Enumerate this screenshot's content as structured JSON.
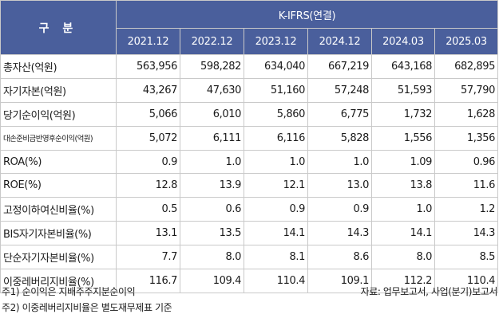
{
  "table": {
    "header_label": "구 분",
    "group_header": "K-IFRS(연결)",
    "columns": [
      "2021.12",
      "2022.12",
      "2023.12",
      "2024.12",
      "2024.03",
      "2025.03"
    ],
    "rows": [
      {
        "label": "총자산(억원)",
        "values": [
          "563,956",
          "598,282",
          "634,040",
          "667,219",
          "643,168",
          "682,895"
        ]
      },
      {
        "label": "자기자본(억원)",
        "values": [
          "43,267",
          "47,630",
          "51,160",
          "57,248",
          "51,593",
          "57,790"
        ]
      },
      {
        "label": "당기순이익(억원)",
        "values": [
          "5,066",
          "6,010",
          "5,860",
          "6,775",
          "1,732",
          "1,628"
        ]
      },
      {
        "label": "대손준비금반영후순이익(억원)",
        "values": [
          "5,072",
          "6,111",
          "6,116",
          "5,828",
          "1,556",
          "1,356"
        ]
      },
      {
        "label": "ROA(%)",
        "values": [
          "0.9",
          "1.0",
          "1.0",
          "1.0",
          "1.09",
          "0.96"
        ]
      },
      {
        "label": "ROE(%)",
        "values": [
          "12.8",
          "13.9",
          "12.1",
          "13.0",
          "13.8",
          "11.6"
        ]
      },
      {
        "label": "고정이하여신비율(%)",
        "values": [
          "0.5",
          "0.6",
          "0.9",
          "0.9",
          "1.0",
          "1.2"
        ]
      },
      {
        "label": "BIS자기자본비율(%)",
        "values": [
          "13.1",
          "13.5",
          "14.1",
          "14.3",
          "14.1",
          "14.3"
        ]
      },
      {
        "label": "단순자기자본비율(%)",
        "values": [
          "7.7",
          "8.0",
          "8.1",
          "8.6",
          "8.0",
          "8.5"
        ]
      },
      {
        "label": "이중레버리지비율(%)",
        "values": [
          "116.7",
          "109.4",
          "110.4",
          "109.1",
          "112.2",
          "110.4"
        ]
      }
    ]
  },
  "notes": {
    "note1": "주1) 순이익은 지배주주지분순이익",
    "note2": "주2) 이중레버리지비율은 별도재무제표 기준",
    "source": "자료: 업무보고서, 사업(분기)보고서"
  },
  "colors": {
    "header_bg": "#4a5f9c",
    "header_text": "#ffffff",
    "border": "#c9c9c9"
  }
}
